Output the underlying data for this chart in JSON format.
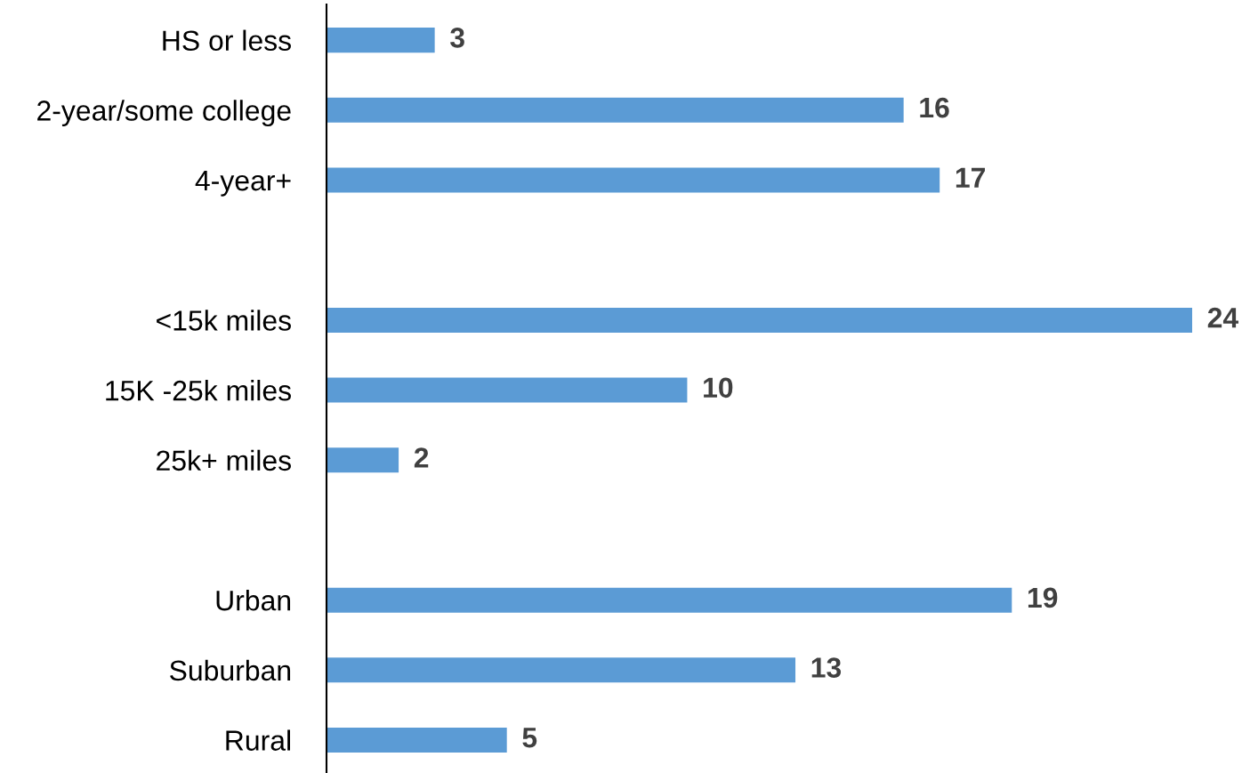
{
  "chart_data": {
    "type": "bar",
    "orientation": "horizontal",
    "categories": [
      "HS or less",
      "2-year/some college",
      "4-year+",
      null,
      "<15k miles",
      "15K -25k miles",
      "25k+ miles",
      null,
      "Urban",
      "Suburban",
      "Rural"
    ],
    "values": [
      3,
      16,
      17,
      null,
      24,
      10,
      2,
      null,
      19,
      13,
      5
    ],
    "color": "#5b9bd5",
    "data_labels": true,
    "grid": false,
    "legend": false
  }
}
